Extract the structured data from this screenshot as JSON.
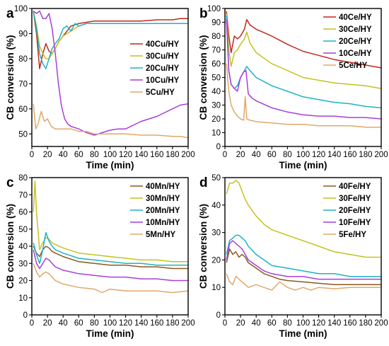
{
  "chart_data": [
    {
      "panel": "a",
      "type": "line",
      "xlabel": "Time (min)",
      "ylabel": "CB conversion (%)",
      "xlim": [
        0,
        200
      ],
      "ylim": [
        45,
        100
      ],
      "xticks": [
        0,
        20,
        40,
        60,
        80,
        100,
        120,
        140,
        160,
        180,
        200
      ],
      "yticks": [
        50,
        60,
        70,
        80,
        90,
        100
      ],
      "legend_position": "middle-right",
      "series": [
        {
          "name": "40Cu/HY",
          "color": "#c0281e",
          "x": [
            2,
            6,
            10,
            14,
            18,
            22,
            26,
            30,
            35,
            40,
            50,
            60,
            70,
            80,
            100,
            120,
            140,
            160,
            180,
            190,
            200
          ],
          "y": [
            99,
            90,
            76,
            82,
            86,
            83,
            82,
            84,
            87,
            89,
            93,
            94,
            94.5,
            95,
            95,
            95,
            95,
            95.5,
            95.5,
            96,
            96
          ]
        },
        {
          "name": "30Cu/HY",
          "color": "#c4c221",
          "x": [
            2,
            6,
            10,
            14,
            18,
            22,
            26,
            30,
            35,
            40,
            50,
            60,
            70,
            80,
            100,
            120,
            140,
            160,
            180,
            200
          ],
          "y": [
            99,
            93,
            85,
            82,
            80,
            80,
            82,
            84,
            87,
            89,
            91,
            93,
            94,
            94,
            94,
            94,
            94,
            94,
            94,
            94
          ]
        },
        {
          "name": "20Cu/HY",
          "color": "#1db3c4",
          "x": [
            2,
            6,
            10,
            14,
            18,
            22,
            26,
            30,
            35,
            40,
            45,
            50,
            55,
            60,
            70,
            80,
            100,
            120,
            140,
            160,
            180,
            200
          ],
          "y": [
            99,
            92,
            82,
            78,
            76,
            80,
            84,
            86,
            88,
            92,
            93,
            91,
            94,
            93,
            94,
            94,
            94,
            94,
            94,
            94,
            94,
            94
          ]
        },
        {
          "name": "10Cu/HY",
          "color": "#a640d8",
          "x": [
            2,
            6,
            10,
            14,
            18,
            22,
            26,
            30,
            34,
            38,
            42,
            46,
            50,
            60,
            70,
            80,
            90,
            100,
            110,
            120,
            140,
            160,
            180,
            190,
            200
          ],
          "y": [
            99,
            98,
            99,
            96,
            96,
            98,
            92,
            82,
            70,
            61,
            56,
            54,
            53,
            52,
            50.5,
            49.5,
            50.5,
            51.5,
            52,
            52,
            55,
            57,
            60,
            61.5,
            62
          ]
        },
        {
          "name": "5Cu/HY",
          "color": "#e0a86a",
          "x": [
            2,
            5,
            8,
            12,
            16,
            20,
            25,
            30,
            40,
            50,
            60,
            70,
            80,
            90,
            100,
            120,
            140,
            160,
            180,
            190,
            200
          ],
          "y": [
            62,
            52,
            54,
            59,
            55,
            56,
            53,
            52,
            52,
            52,
            51,
            51,
            50,
            50,
            50,
            50,
            49.5,
            49.5,
            49,
            49,
            48.5
          ]
        }
      ]
    },
    {
      "panel": "b",
      "type": "line",
      "xlabel": "Time (min)",
      "ylabel": "CB conversion (%)",
      "xlim": [
        0,
        200
      ],
      "ylim": [
        0,
        100
      ],
      "xticks": [
        0,
        20,
        40,
        60,
        80,
        100,
        120,
        140,
        160,
        180,
        200
      ],
      "yticks": [
        0,
        10,
        20,
        30,
        40,
        50,
        60,
        70,
        80,
        90,
        100
      ],
      "legend_position": "top-right",
      "series": [
        {
          "name": "40Ce/HY",
          "color": "#c0281e",
          "x": [
            2,
            5,
            8,
            12,
            16,
            20,
            25,
            28,
            32,
            40,
            60,
            80,
            100,
            120,
            140,
            160,
            180,
            200
          ],
          "y": [
            98,
            80,
            68,
            80,
            78,
            80,
            85,
            92,
            88,
            85,
            80,
            74,
            69,
            66,
            63,
            61,
            59,
            57
          ]
        },
        {
          "name": "30Ce/HY",
          "color": "#c4c221",
          "x": [
            2,
            5,
            8,
            12,
            16,
            20,
            25,
            28,
            32,
            40,
            60,
            80,
            100,
            120,
            140,
            160,
            180,
            200
          ],
          "y": [
            96,
            70,
            58,
            68,
            70,
            74,
            78,
            83,
            75,
            68,
            60,
            55,
            50,
            48,
            46,
            45,
            44,
            42
          ]
        },
        {
          "name": "20Ce/HY",
          "color": "#1db3c4",
          "x": [
            2,
            5,
            8,
            12,
            16,
            20,
            25,
            28,
            32,
            40,
            60,
            80,
            100,
            120,
            140,
            160,
            180,
            200
          ],
          "y": [
            95,
            55,
            45,
            42,
            44,
            50,
            55,
            58,
            55,
            50,
            44,
            40,
            36,
            34,
            32,
            31,
            29,
            28
          ]
        },
        {
          "name": "10Ce/HY",
          "color": "#a640d8",
          "x": [
            2,
            5,
            8,
            12,
            16,
            20,
            24,
            27,
            30,
            35,
            40,
            60,
            80,
            100,
            120,
            140,
            160,
            180,
            200
          ],
          "y": [
            92,
            55,
            45,
            42,
            40,
            50,
            54,
            55,
            38,
            35,
            33,
            28,
            25,
            23,
            22,
            22,
            21,
            21,
            20
          ]
        },
        {
          "name": "5Ce/HY",
          "color": "#e0a86a",
          "x": [
            2,
            5,
            8,
            12,
            16,
            20,
            24,
            26,
            28,
            32,
            40,
            60,
            80,
            100,
            120,
            140,
            160,
            180,
            200
          ],
          "y": [
            60,
            40,
            30,
            25,
            22,
            20,
            19,
            36,
            20,
            19,
            18,
            17,
            16,
            16,
            15,
            15,
            15,
            14,
            14
          ]
        }
      ]
    },
    {
      "panel": "c",
      "type": "line",
      "xlabel": "Time (min)",
      "ylabel": "CB conversion (%)",
      "xlim": [
        0,
        200
      ],
      "ylim": [
        0,
        80
      ],
      "xticks": [
        0,
        20,
        40,
        60,
        80,
        100,
        120,
        140,
        160,
        180,
        200
      ],
      "yticks": [
        0,
        10,
        20,
        30,
        40,
        50,
        60,
        70,
        80
      ],
      "legend_position": "top-right",
      "series": [
        {
          "name": "40Mn/HY",
          "color": "#8a5a1e",
          "x": [
            2,
            6,
            10,
            14,
            18,
            22,
            26,
            30,
            40,
            60,
            80,
            100,
            120,
            140,
            160,
            180,
            200
          ],
          "y": [
            40,
            36,
            34,
            38,
            40,
            39,
            37,
            36,
            34,
            31,
            30,
            29,
            29,
            28,
            28,
            27,
            27
          ]
        },
        {
          "name": "30Mn/HY",
          "color": "#c4c221",
          "x": [
            2,
            4,
            6,
            10,
            14,
            18,
            22,
            26,
            30,
            40,
            60,
            80,
            100,
            120,
            140,
            160,
            180,
            200
          ],
          "y": [
            60,
            78,
            60,
            38,
            42,
            45,
            44,
            42,
            41,
            39,
            36,
            35,
            34,
            33,
            32,
            32,
            31,
            31
          ]
        },
        {
          "name": "20Mn/HY",
          "color": "#1db3c4",
          "x": [
            2,
            6,
            10,
            14,
            18,
            22,
            26,
            30,
            40,
            60,
            80,
            100,
            120,
            140,
            160,
            180,
            200
          ],
          "y": [
            42,
            35,
            30,
            38,
            48,
            43,
            40,
            38,
            36,
            33,
            32,
            31,
            30,
            30,
            29,
            29,
            29
          ]
        },
        {
          "name": "10Mn/HY",
          "color": "#a640d8",
          "x": [
            2,
            6,
            10,
            14,
            18,
            22,
            26,
            30,
            40,
            60,
            80,
            100,
            120,
            140,
            160,
            180,
            200
          ],
          "y": [
            38,
            30,
            27,
            30,
            33,
            32,
            30,
            28,
            26,
            24,
            23,
            22,
            22,
            21,
            21,
            20,
            20
          ]
        },
        {
          "name": "5Mn/HY",
          "color": "#e0a86a",
          "x": [
            2,
            6,
            10,
            14,
            18,
            22,
            26,
            30,
            40,
            50,
            60,
            80,
            90,
            100,
            120,
            140,
            160,
            180,
            200
          ],
          "y": [
            30,
            25,
            22,
            24,
            25,
            24,
            22,
            20,
            18,
            17,
            16,
            15,
            13,
            15,
            14,
            14,
            14,
            13,
            14
          ]
        }
      ]
    },
    {
      "panel": "d",
      "type": "line",
      "xlabel": "Time (min)",
      "ylabel": "CB conversion (%)",
      "xlim": [
        0,
        200
      ],
      "ylim": [
        0,
        50
      ],
      "xticks": [
        0,
        20,
        40,
        60,
        80,
        100,
        120,
        140,
        160,
        180,
        200
      ],
      "yticks": [
        0,
        10,
        20,
        30,
        40,
        50
      ],
      "legend_position": "top-right",
      "series": [
        {
          "name": "40Fe/HY",
          "color": "#8a5a1e",
          "x": [
            2,
            6,
            10,
            14,
            18,
            22,
            26,
            30,
            40,
            50,
            60,
            70,
            80,
            100,
            120,
            140,
            160,
            180,
            200
          ],
          "y": [
            19,
            24,
            22,
            23,
            21,
            22,
            21,
            19,
            17,
            15,
            14,
            13,
            12.5,
            12,
            11.5,
            11,
            11,
            11,
            11
          ]
        },
        {
          "name": "30Fe/HY",
          "color": "#c4c221",
          "x": [
            2,
            6,
            10,
            14,
            18,
            22,
            26,
            30,
            40,
            50,
            60,
            70,
            80,
            100,
            120,
            140,
            160,
            180,
            200
          ],
          "y": [
            44,
            48,
            48,
            49,
            48,
            45,
            42,
            40,
            36,
            33,
            31,
            30,
            29,
            27,
            25,
            23,
            22,
            21,
            21
          ]
        },
        {
          "name": "20Fe/HY",
          "color": "#1db3c4",
          "x": [
            2,
            6,
            10,
            14,
            18,
            22,
            26,
            30,
            40,
            50,
            60,
            80,
            100,
            120,
            140,
            160,
            180,
            200
          ],
          "y": [
            22,
            27,
            28,
            29,
            29,
            28,
            27,
            25,
            22,
            20,
            18,
            17,
            16,
            15,
            15,
            14,
            14,
            14
          ]
        },
        {
          "name": "10Fe/HY",
          "color": "#a640d8",
          "x": [
            2,
            6,
            10,
            14,
            18,
            22,
            26,
            30,
            40,
            50,
            60,
            80,
            100,
            120,
            140,
            160,
            180,
            200
          ],
          "y": [
            20,
            26,
            27,
            26,
            25,
            24,
            22,
            20,
            18,
            16,
            15,
            14,
            14,
            13,
            13,
            13,
            13,
            13
          ]
        },
        {
          "name": "5Fe/HY",
          "color": "#e0a86a",
          "x": [
            2,
            6,
            10,
            14,
            18,
            22,
            26,
            30,
            40,
            50,
            60,
            70,
            80,
            90,
            100,
            110,
            120,
            140,
            160,
            180,
            200
          ],
          "y": [
            15,
            12,
            11,
            14,
            13,
            12,
            11,
            10,
            11,
            10,
            9,
            12,
            10,
            9,
            10,
            9,
            10,
            9.5,
            10,
            10,
            10
          ]
        }
      ]
    }
  ]
}
